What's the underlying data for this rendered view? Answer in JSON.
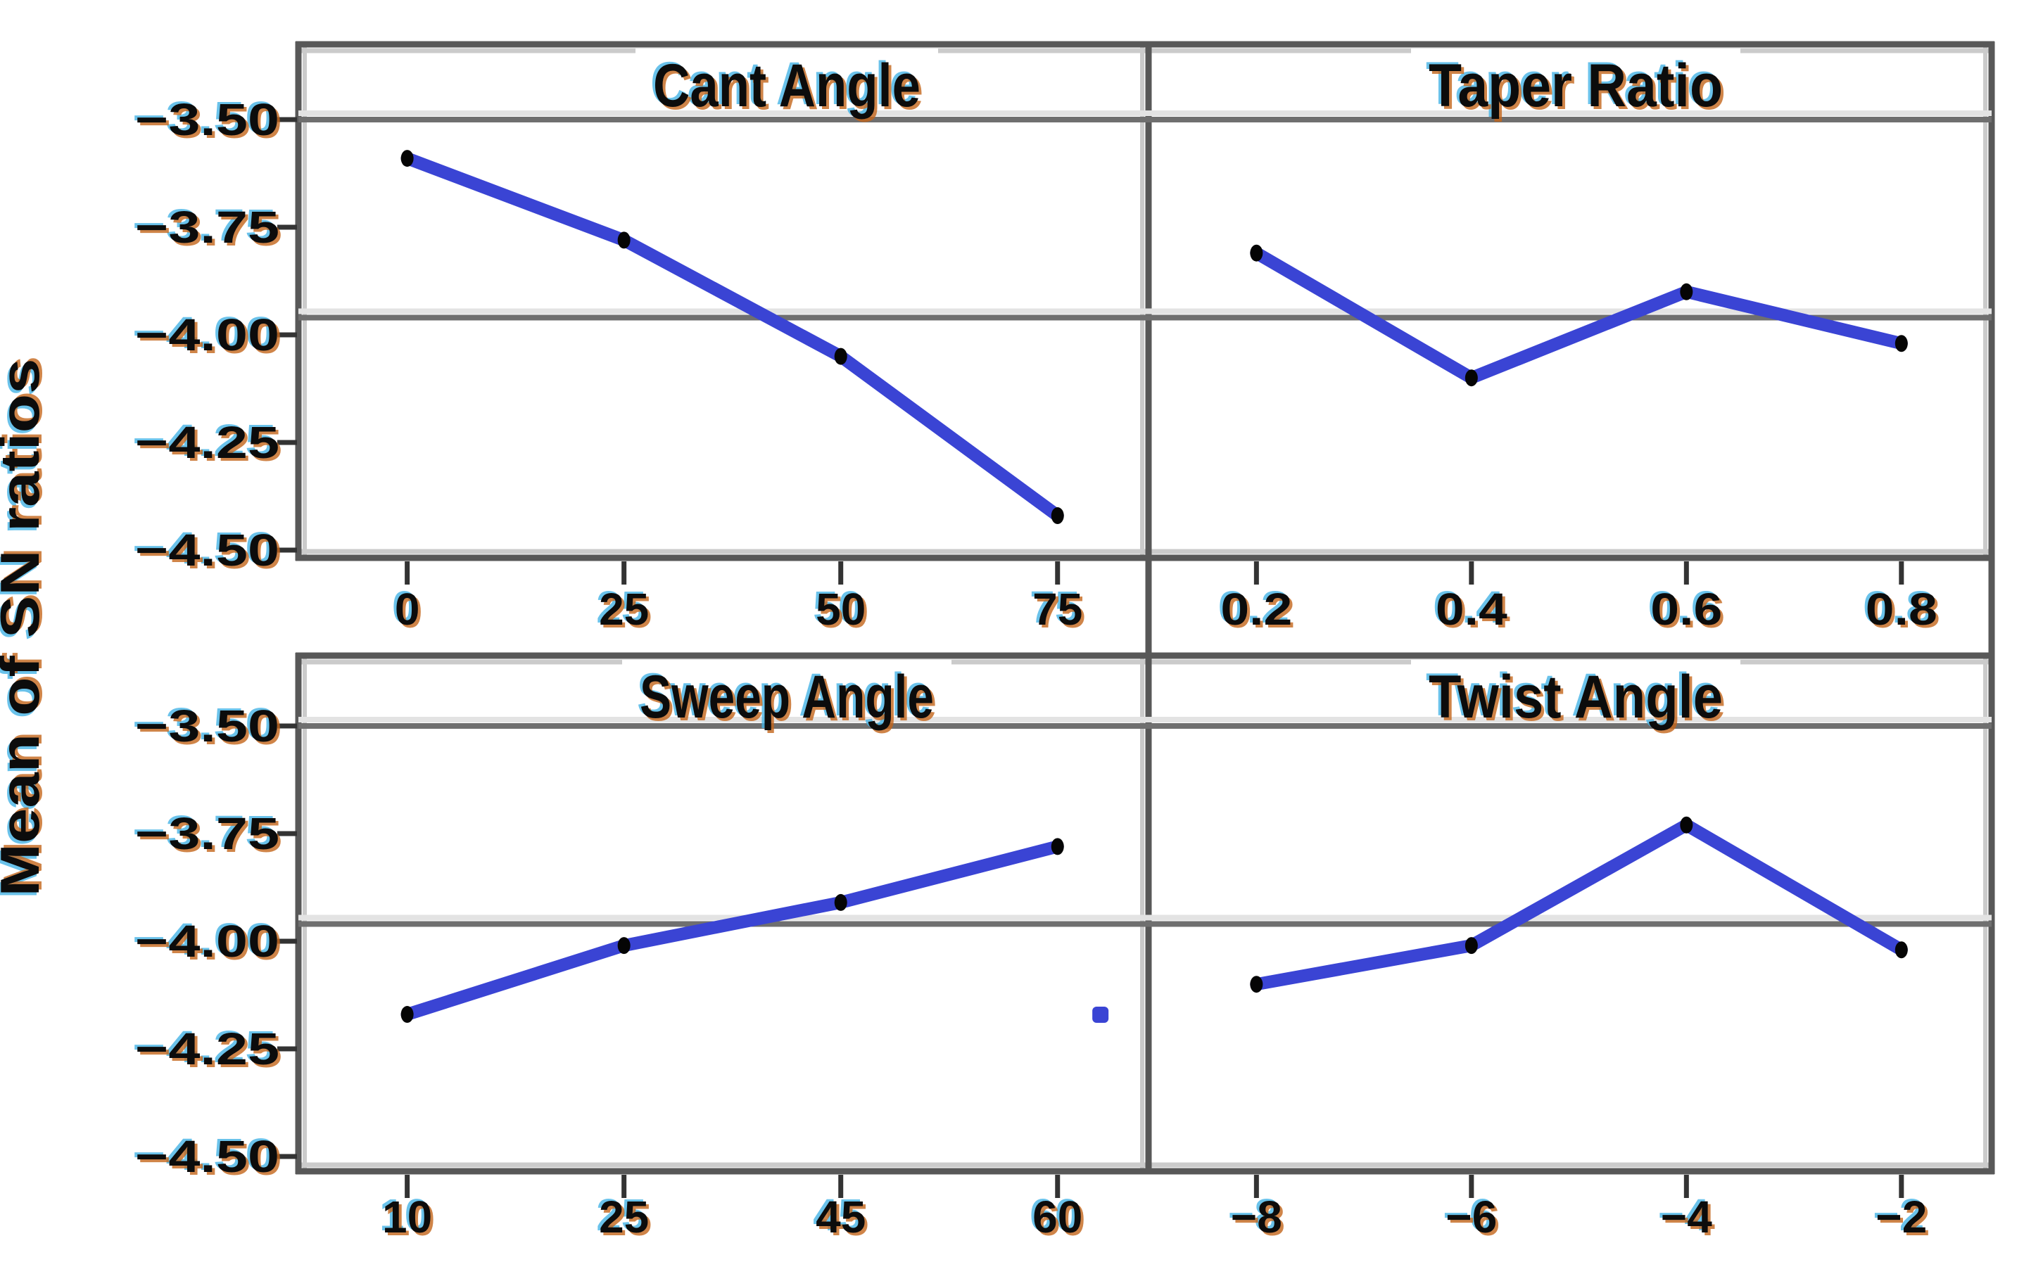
{
  "figure": {
    "kind": "main-effects-plot",
    "y_axis_title": "Mean of SN ratios"
  },
  "chart_data": {
    "type": "line",
    "layout": "2x2-paneled main effects plot (Minitab style)",
    "ylabel": "Mean of SN ratios",
    "ylim": [
      -4.53,
      -3.32
    ],
    "yticks": [
      -3.5,
      -3.75,
      -4.0,
      -4.25,
      -4.5
    ],
    "y_tick_labels": [
      "−3.50",
      "−3.75",
      "−4.00",
      "−4.25",
      "−4.50"
    ],
    "gridline_value": -3.5,
    "mean_line_value": -3.96,
    "legend": "none",
    "grid": "horizontal reference lines at -3.50 and overall mean only",
    "panels": [
      {
        "title": "Cant Angle",
        "categories": [
          "0",
          "25",
          "50",
          "75"
        ],
        "values": [
          -3.59,
          -3.78,
          -4.05,
          -4.42
        ]
      },
      {
        "title": "Taper Ratio",
        "categories": [
          "0.2",
          "0.4",
          "0.6",
          "0.8"
        ],
        "values": [
          -3.81,
          -4.1,
          -3.9,
          -4.02
        ]
      },
      {
        "title": "Sweep Angle",
        "categories": [
          "10",
          "25",
          "45",
          "60"
        ],
        "values": [
          -4.17,
          -4.01,
          -3.91,
          -3.78
        ],
        "artifact_dot": {
          "x_fraction": 0.943,
          "value": -4.17
        }
      },
      {
        "title": "Twist Angle",
        "categories": [
          "−8",
          "−6",
          "−4",
          "−2"
        ],
        "values": [
          -4.1,
          -4.01,
          -3.73,
          -4.02
        ]
      }
    ]
  },
  "style": {
    "line_color": "#3a44d4",
    "marker_color": "#050505",
    "grid_dark": "#6f6f6f",
    "grid_light": "#e3e3e3",
    "border_dark": "#585858",
    "border_light": "#cbcbcb",
    "tick_color": "#333333",
    "text_color": "#0c0c0c",
    "fringe_cyan": "#45b4e6",
    "fringe_orange": "#c4661b",
    "background": "#ffffff"
  }
}
